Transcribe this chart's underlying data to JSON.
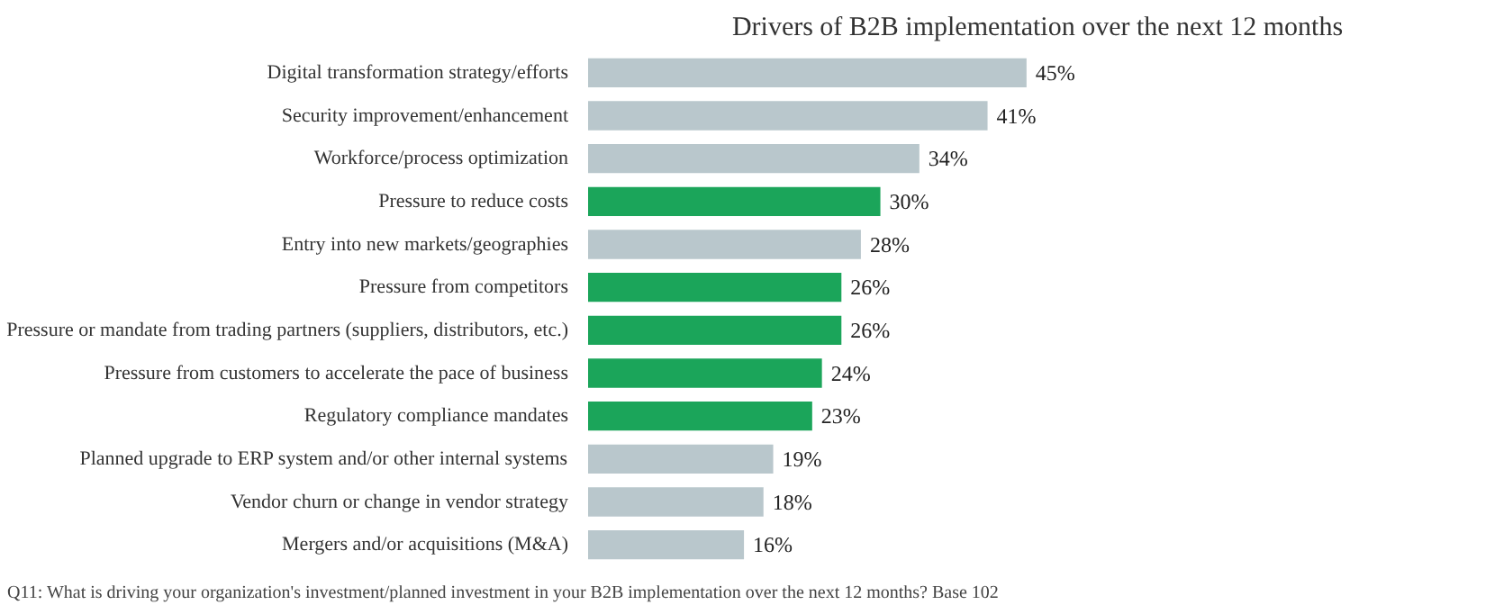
{
  "chart_data": {
    "type": "bar",
    "orientation": "horizontal",
    "title": "Drivers of B2B implementation over the next 12 months",
    "categories": [
      "Digital transformation strategy/efforts",
      "Security improvement/enhancement",
      "Workforce/process optimization",
      "Pressure to reduce costs",
      "Entry into new markets/geographies",
      "Pressure from competitors",
      "Pressure or mandate from trading partners (suppliers, distributors, etc.)",
      "Pressure from customers to accelerate the pace of business",
      "Regulatory compliance mandates",
      "Planned upgrade to ERP system and/or other internal systems",
      "Vendor churn or change in vendor strategy",
      "Mergers and/or acquisitions (M&A)"
    ],
    "values": [
      45,
      41,
      34,
      30,
      28,
      26,
      26,
      24,
      23,
      19,
      18,
      16
    ],
    "value_labels": [
      "45%",
      "41%",
      "34%",
      "30%",
      "28%",
      "26%",
      "26%",
      "24%",
      "23%",
      "19%",
      "18%",
      "16%"
    ],
    "colors": [
      "#b9c7cc",
      "#b9c7cc",
      "#b9c7cc",
      "#1ba55a",
      "#b9c7cc",
      "#1ba55a",
      "#1ba55a",
      "#1ba55a",
      "#1ba55a",
      "#b9c7cc",
      "#b9c7cc",
      "#b9c7cc"
    ],
    "grid": false,
    "annotations": [
      "Q11: What is driving your organization's investment/planned investment in your B2B implementation over the next 12 months? Base 102"
    ]
  }
}
